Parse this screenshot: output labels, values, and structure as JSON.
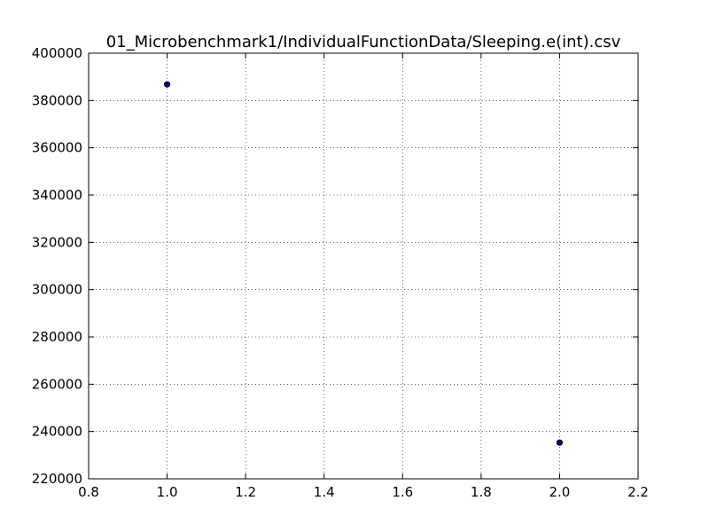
{
  "chart_data": {
    "type": "scatter",
    "title": "01_Microbenchmark1/IndividualFunctionData/Sleeping.e(int).csv",
    "xlabel": "",
    "ylabel": "",
    "xlim": [
      0.8,
      2.2
    ],
    "ylim": [
      220000,
      400000
    ],
    "xticks": [
      0.8,
      1.0,
      1.2,
      1.4,
      1.6,
      1.8,
      2.0,
      2.2
    ],
    "yticks": [
      220000,
      240000,
      260000,
      280000,
      300000,
      320000,
      340000,
      360000,
      380000,
      400000
    ],
    "xtick_labels": [
      "0.8",
      "1.0",
      "1.2",
      "1.4",
      "1.6",
      "1.8",
      "2.0",
      "2.2"
    ],
    "ytick_labels": [
      "220000",
      "240000",
      "260000",
      "280000",
      "300000",
      "320000",
      "340000",
      "360000",
      "380000",
      "400000"
    ],
    "grid": true,
    "marker_color": "#00008b",
    "series": [
      {
        "x": [
          1.0,
          2.0
        ],
        "y": [
          386800,
          235300
        ]
      }
    ]
  }
}
